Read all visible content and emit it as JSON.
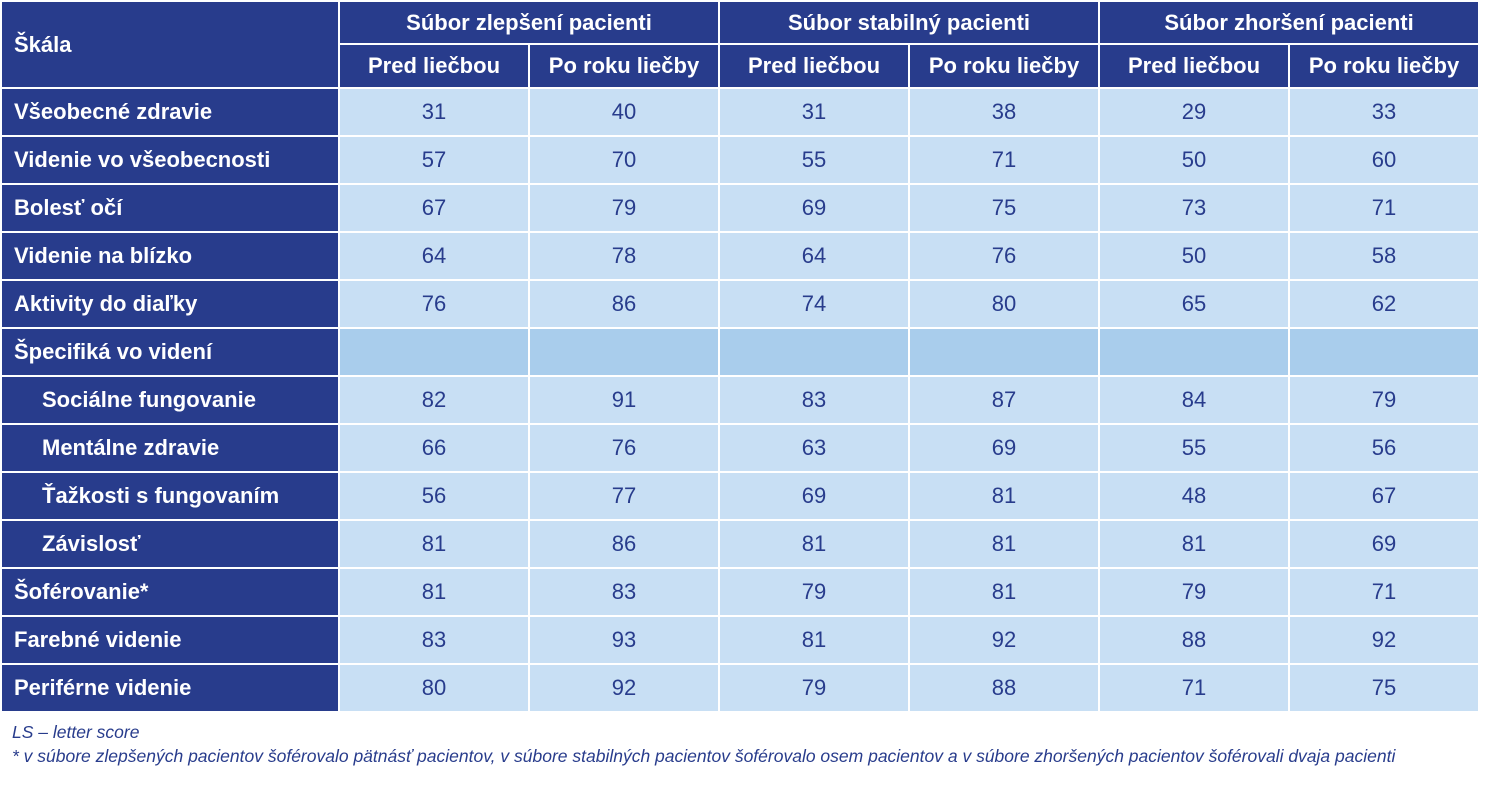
{
  "header": {
    "scale_label": "Škála",
    "groups": [
      "Súbor zlepšení pacienti",
      "Súbor stabilný pacienti",
      "Súbor zhoršení pacienti"
    ],
    "subheaders": [
      "Pred liečbou",
      "Po roku liečby",
      "Pred liečbou",
      "Po roku liečby",
      "Pred liečbou",
      "Po roku liečby"
    ]
  },
  "rows": [
    {
      "label": "Všeobecné zdravie",
      "values": [
        "31",
        "40",
        "31",
        "38",
        "29",
        "33"
      ]
    },
    {
      "label": "Videnie vo všeobecnosti",
      "values": [
        "57",
        "70",
        "55",
        "71",
        "50",
        "60"
      ]
    },
    {
      "label": "Bolesť očí",
      "values": [
        "67",
        "79",
        "69",
        "75",
        "73",
        "71"
      ]
    },
    {
      "label": "Videnie na blízko",
      "values": [
        "64",
        "78",
        "64",
        "76",
        "50",
        "58"
      ]
    },
    {
      "label": "Aktivity do diaľky",
      "values": [
        "76",
        "86",
        "74",
        "80",
        "65",
        "62"
      ]
    },
    {
      "label": "Špecifiká vo videní",
      "values": [
        "",
        "",
        "",
        "",
        "",
        ""
      ]
    },
    {
      "label": "Sociálne fungovanie",
      "values": [
        "82",
        "91",
        "83",
        "87",
        "84",
        "79"
      ]
    },
    {
      "label": "Mentálne zdravie",
      "values": [
        "66",
        "76",
        "63",
        "69",
        "55",
        "56"
      ]
    },
    {
      "label": "Ťažkosti s fungovaním",
      "values": [
        "56",
        "77",
        "69",
        "81",
        "48",
        "67"
      ]
    },
    {
      "label": "Závislosť",
      "values": [
        "81",
        "86",
        "81",
        "81",
        "81",
        "69"
      ]
    },
    {
      "label": "Šoférovanie*",
      "values": [
        "81",
        "83",
        "79",
        "81",
        "79",
        "71"
      ]
    },
    {
      "label": "Farebné videnie",
      "values": [
        "83",
        "93",
        "81",
        "92",
        "88",
        "92"
      ]
    },
    {
      "label": "Periférne videnie",
      "values": [
        "80",
        "92",
        "79",
        "88",
        "71",
        "75"
      ]
    }
  ],
  "notes": {
    "abbreviation": "LS – letter score",
    "footnote": "* v súbore zlepšených pacientov šoférovalo pätnásť pacientov, v súbore stabilných pacientov šoférovalo osem pacientov a v súbore zhoršených pacientov šoférovali dvaja pacienti"
  },
  "colors": {
    "header_bg": "#283c8c",
    "cell_bg": "#c8dff4",
    "section_bg": "#a9cdec",
    "text_dark": "#283c8c"
  }
}
